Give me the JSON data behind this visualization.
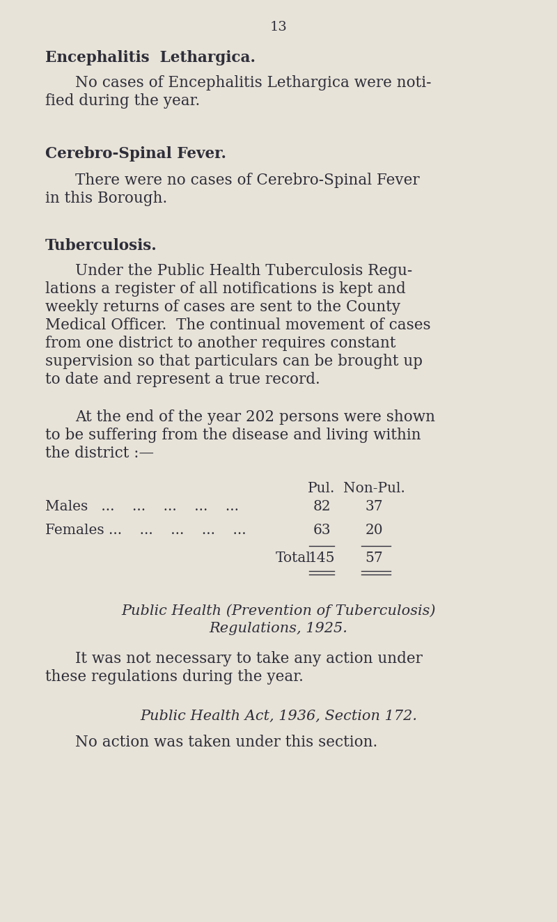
{
  "page_number": "13",
  "bg_color": "#e8e3d8",
  "text_color": "#2e2e3a",
  "page_num_fontsize": 14,
  "section1_heading": "Encephalitis  Lethargica.",
  "section1_body_line1": "No cases of Encephalitis Lethargica were noti-",
  "section1_body_line2": "fied during the year.",
  "section2_heading": "Cerebro-Spinal Fever.",
  "section2_body_line1": "There were no cases of Cerebro-Spinal Fever",
  "section2_body_line2": "in this Borough.",
  "section3_heading": "Tuberculosis.",
  "section3_body1_line1": "Under the Public Health Tuberculosis Regu-",
  "section3_body1_line2": "lations a register of all notifications is kept and",
  "section3_body1_line3": "weekly returns of cases are sent to the County",
  "section3_body1_line4": "Medical Officer.  The continual movement of cases",
  "section3_body1_line5": "from one district to another requires constant",
  "section3_body1_line6": "supervision so that particulars can be brought up",
  "section3_body1_line7": "to date and represent a true record.",
  "section3_body2_line1": "At the end of the year 202 persons were shown",
  "section3_body2_line2": "to be suffering from the disease and living within",
  "section3_body2_line3": "the district :—",
  "col_header_pul": "Pul.",
  "col_header_nonpul": "Non-Pul.",
  "row1_label": "Males   ...    ...    ...    ...    ...",
  "row1_pul": "82",
  "row1_nonpul": "37",
  "row2_label": "Females ...    ...    ...    ...    ...",
  "row2_pul": "63",
  "row2_nonpul": "20",
  "total_label": "Total",
  "total_pul": "145",
  "total_nonpul": "57",
  "section4_heading_line1": "Public Health (Prevention of Tuberculosis)",
  "section4_heading_line2": "Regulations, 1925.",
  "section4_body_line1": "It was not necessary to take any action under",
  "section4_body_line2": "these regulations during the year.",
  "section5_heading": "Public Health Act, 1936, Section 172.",
  "section5_body": "No action was taken under this section."
}
